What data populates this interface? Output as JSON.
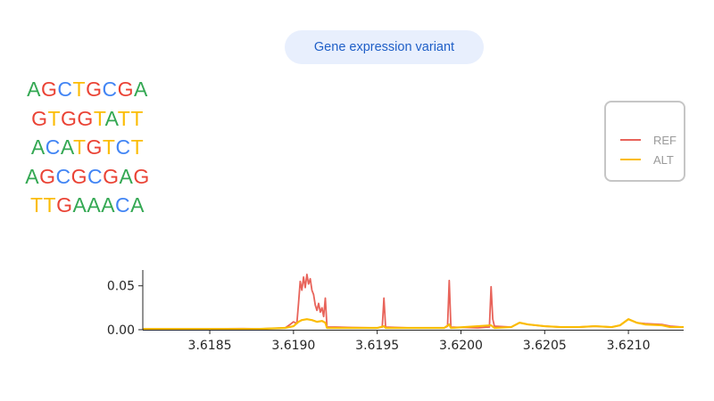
{
  "header": {
    "chip_label": "Gene expression variant"
  },
  "sequence": {
    "lines": [
      "AGCTGCGA",
      "GTGGTATT",
      "ACATGTCT",
      "AGCGCGAG",
      "TTGAAACA"
    ],
    "base_colors": {
      "A": "#34a853",
      "C": "#4285f4",
      "G": "#ea4335",
      "T": "#fbbc04"
    }
  },
  "chart_data": {
    "type": "line",
    "title": "",
    "xlabel": "",
    "ylabel": "",
    "xlim": [
      3.6181,
      3.62133
    ],
    "ylim": [
      0,
      0.068
    ],
    "xticks": [
      3.6185,
      3.619,
      3.6195,
      3.62,
      3.6205,
      3.621
    ],
    "xtick_labels": [
      "3.6185",
      "3.6190",
      "3.6195",
      "3.6200",
      "3.6205",
      "3.6210"
    ],
    "yticks": [
      0.0,
      0.05
    ],
    "ytick_labels": [
      "0.00",
      "0.05"
    ],
    "grid": false,
    "legend_placement": "top-right",
    "series": [
      {
        "name": "REF",
        "color": "#e8635a",
        "points": [
          [
            3.6181,
            0.001
          ],
          [
            3.6185,
            0.001
          ],
          [
            3.6187,
            0.0012
          ],
          [
            3.6188,
            0.001
          ],
          [
            3.61895,
            0.002
          ],
          [
            3.61898,
            0.006
          ],
          [
            3.619,
            0.009
          ],
          [
            3.61902,
            0.007
          ],
          [
            3.61903,
            0.03
          ],
          [
            3.61904,
            0.055
          ],
          [
            3.61905,
            0.045
          ],
          [
            3.61906,
            0.06
          ],
          [
            3.61907,
            0.048
          ],
          [
            3.61908,
            0.063
          ],
          [
            3.61909,
            0.052
          ],
          [
            3.6191,
            0.058
          ],
          [
            3.61911,
            0.045
          ],
          [
            3.61912,
            0.04
          ],
          [
            3.61913,
            0.028
          ],
          [
            3.61914,
            0.022
          ],
          [
            3.61915,
            0.03
          ],
          [
            3.61916,
            0.02
          ],
          [
            3.61917,
            0.025
          ],
          [
            3.61918,
            0.015
          ],
          [
            3.61919,
            0.036
          ],
          [
            3.6192,
            0.003
          ],
          [
            3.61925,
            0.003
          ],
          [
            3.61935,
            0.0025
          ],
          [
            3.6195,
            0.002
          ],
          [
            3.61953,
            0.003
          ],
          [
            3.61954,
            0.036
          ],
          [
            3.61955,
            0.003
          ],
          [
            3.6197,
            0.002
          ],
          [
            3.6199,
            0.002
          ],
          [
            3.61992,
            0.004
          ],
          [
            3.61993,
            0.056
          ],
          [
            3.61994,
            0.003
          ],
          [
            3.6201,
            0.002
          ],
          [
            3.62017,
            0.003
          ],
          [
            3.62018,
            0.049
          ],
          [
            3.62019,
            0.012
          ],
          [
            3.6202,
            0.004
          ],
          [
            3.6203,
            0.003
          ],
          [
            3.62035,
            0.008
          ],
          [
            3.6204,
            0.006
          ],
          [
            3.6205,
            0.004
          ],
          [
            3.6206,
            0.003
          ],
          [
            3.6207,
            0.003
          ],
          [
            3.6208,
            0.004
          ],
          [
            3.6209,
            0.003
          ],
          [
            3.62095,
            0.005
          ],
          [
            3.621,
            0.012
          ],
          [
            3.62105,
            0.008
          ],
          [
            3.6211,
            0.007
          ],
          [
            3.6212,
            0.006
          ],
          [
            3.62125,
            0.004
          ],
          [
            3.62133,
            0.003
          ]
        ]
      },
      {
        "name": "ALT",
        "color": "#fbbc04",
        "points": [
          [
            3.6181,
            0.0008
          ],
          [
            3.6185,
            0.0008
          ],
          [
            3.6188,
            0.0009
          ],
          [
            3.61895,
            0.002
          ],
          [
            3.619,
            0.004
          ],
          [
            3.61903,
            0.009
          ],
          [
            3.61905,
            0.011
          ],
          [
            3.61908,
            0.012
          ],
          [
            3.61911,
            0.011
          ],
          [
            3.61914,
            0.009
          ],
          [
            3.61917,
            0.01
          ],
          [
            3.61919,
            0.008
          ],
          [
            3.6192,
            0.002
          ],
          [
            3.61935,
            0.002
          ],
          [
            3.6195,
            0.002
          ],
          [
            3.61954,
            0.004
          ],
          [
            3.61955,
            0.002
          ],
          [
            3.6199,
            0.002
          ],
          [
            3.61993,
            0.006
          ],
          [
            3.61994,
            0.002
          ],
          [
            3.62018,
            0.005
          ],
          [
            3.6202,
            0.002
          ],
          [
            3.6203,
            0.003
          ],
          [
            3.62035,
            0.008
          ],
          [
            3.6204,
            0.006
          ],
          [
            3.6205,
            0.004
          ],
          [
            3.6206,
            0.003
          ],
          [
            3.6207,
            0.003
          ],
          [
            3.6208,
            0.004
          ],
          [
            3.6209,
            0.003
          ],
          [
            3.62095,
            0.005
          ],
          [
            3.621,
            0.012
          ],
          [
            3.62105,
            0.008
          ],
          [
            3.6211,
            0.006
          ],
          [
            3.6212,
            0.005
          ],
          [
            3.62125,
            0.003
          ],
          [
            3.62133,
            0.003
          ]
        ]
      }
    ]
  }
}
